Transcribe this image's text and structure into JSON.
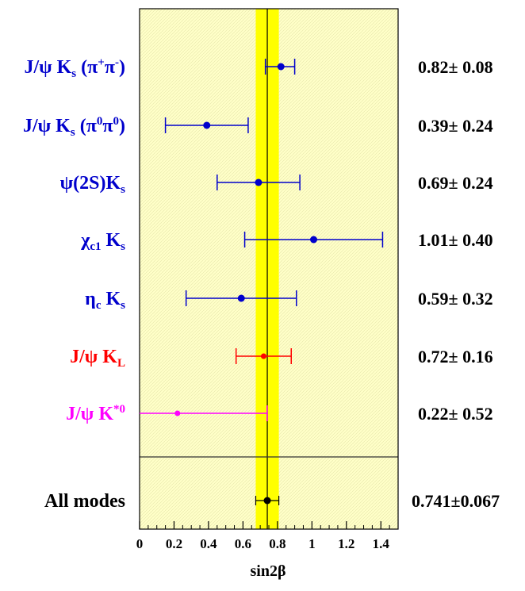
{
  "chart_data": {
    "type": "scatter",
    "xlabel": "sin2β",
    "xlim": [
      0,
      1.5
    ],
    "xticks": [
      "0",
      "0.2",
      "0.4",
      "0.6",
      "0.8",
      "1",
      "1.2",
      "1.4"
    ],
    "world_average": {
      "value": 0.741,
      "error": 0.067,
      "band_color": "#ffff00",
      "line_color": "#000000"
    },
    "background_color": "#ffffc8",
    "modes": [
      {
        "name": "J/ψ Ks (π+π-)",
        "label_main": "J/ψ K",
        "sub1": "s",
        "label_mid": " (π",
        "sup1": "+",
        "label_mid2": "π",
        "sup2": "-",
        "label_end": ")",
        "value": 0.82,
        "error": 0.08,
        "err_lo": 0.73,
        "err_hi": 0.9,
        "color": "#0000cc",
        "value_text": "0.82± 0.08"
      },
      {
        "name": "J/ψ Ks (π0π0)",
        "label_main": "J/ψ K",
        "sub1": "s",
        "label_mid": " (π",
        "sup1": "0",
        "label_mid2": "π",
        "sup2": "0",
        "label_end": ")",
        "value": 0.39,
        "error": 0.24,
        "err_lo": 0.15,
        "err_hi": 0.63,
        "color": "#0000cc",
        "value_text": "0.39± 0.24"
      },
      {
        "name": "ψ(2S)Ks",
        "label_main": "ψ(2S)K",
        "sub1": "s",
        "value": 0.69,
        "error": 0.24,
        "err_lo": 0.45,
        "err_hi": 0.93,
        "color": "#0000cc",
        "value_text": "0.69± 0.24"
      },
      {
        "name": "χc1 Ks",
        "label_main": "χ",
        "sub1": "c1",
        "label_mid": " K",
        "sub2": "s",
        "value": 1.01,
        "error": 0.4,
        "err_lo": 0.61,
        "err_hi": 1.41,
        "color": "#0000cc",
        "value_text": "1.01± 0.40"
      },
      {
        "name": "ηc Ks",
        "label_main": "η",
        "sub1": "c",
        "label_mid": " K",
        "sub2": "s",
        "value": 0.59,
        "error": 0.32,
        "err_lo": 0.27,
        "err_hi": 0.91,
        "color": "#0000cc",
        "value_text": "0.59± 0.32"
      },
      {
        "name": "J/ψ KL",
        "label_main": "J/ψ K",
        "sub1": "L",
        "value": 0.72,
        "error": 0.16,
        "err_lo": 0.56,
        "err_hi": 0.88,
        "color": "#ff0000",
        "value_text": "0.72± 0.16"
      },
      {
        "name": "J/ψ K*0",
        "label_main": "J/ψ K",
        "sup1": "*0",
        "value": 0.22,
        "error": 0.52,
        "err_lo": 0.0,
        "err_hi": 0.74,
        "color": "#ff00ff",
        "value_text": "0.22± 0.52"
      },
      {
        "name": "All modes",
        "label_main": "All modes",
        "value": 0.741,
        "error": 0.067,
        "err_lo": 0.674,
        "err_hi": 0.808,
        "color": "#000000",
        "value_text": "0.741±0.067",
        "separator_above": true
      }
    ]
  }
}
